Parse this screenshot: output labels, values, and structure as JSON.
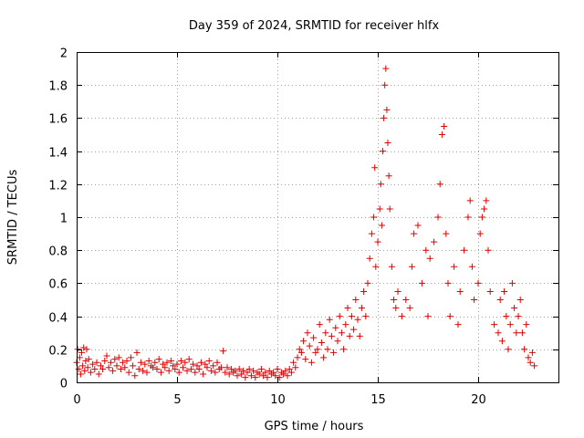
{
  "chart_data": {
    "type": "scatter",
    "title": "Day 359 of 2024, SRMTID for receiver hlfx",
    "xlabel": "GPS time / hours",
    "ylabel": "SRMTID / TECUs",
    "xlim": [
      0,
      24
    ],
    "ylim": [
      0,
      2
    ],
    "xticks": [
      0,
      5,
      10,
      15,
      20
    ],
    "yticks": [
      0,
      0.2,
      0.4,
      0.6,
      0.8,
      1,
      1.2,
      1.4,
      1.6,
      1.8,
      2
    ],
    "xtick_labels": [
      "0",
      "5",
      "10",
      "15",
      "20"
    ],
    "ytick_labels": [
      "0",
      "0.2",
      "0.4",
      "0.6",
      "0.8",
      "1",
      "1.2",
      "1.4",
      "1.6",
      "1.8",
      "2"
    ],
    "grid": true,
    "marker": "+",
    "color": "#e00000",
    "series": [
      {
        "name": "SRMTID",
        "points": [
          [
            0.0,
            0.12
          ],
          [
            0.05,
            0.2
          ],
          [
            0.1,
            0.08
          ],
          [
            0.15,
            0.15
          ],
          [
            0.2,
            0.05
          ],
          [
            0.25,
            0.18
          ],
          [
            0.3,
            0.1
          ],
          [
            0.35,
            0.21
          ],
          [
            0.4,
            0.07
          ],
          [
            0.45,
            0.13
          ],
          [
            0.5,
            0.2
          ],
          [
            0.55,
            0.09
          ],
          [
            0.6,
            0.14
          ],
          [
            0.7,
            0.06
          ],
          [
            0.8,
            0.11
          ],
          [
            0.9,
            0.08
          ],
          [
            1.0,
            0.12
          ],
          [
            1.1,
            0.05
          ],
          [
            1.2,
            0.1
          ],
          [
            1.3,
            0.08
          ],
          [
            1.4,
            0.13
          ],
          [
            1.5,
            0.16
          ],
          [
            1.6,
            0.09
          ],
          [
            1.7,
            0.12
          ],
          [
            1.8,
            0.07
          ],
          [
            1.9,
            0.14
          ],
          [
            2.0,
            0.1
          ],
          [
            2.1,
            0.15
          ],
          [
            2.2,
            0.08
          ],
          [
            2.3,
            0.12
          ],
          [
            2.4,
            0.09
          ],
          [
            2.5,
            0.13
          ],
          [
            2.6,
            0.06
          ],
          [
            2.7,
            0.15
          ],
          [
            2.8,
            0.1
          ],
          [
            2.9,
            0.04
          ],
          [
            3.0,
            0.18
          ],
          [
            3.1,
            0.08
          ],
          [
            3.2,
            0.12
          ],
          [
            3.3,
            0.07
          ],
          [
            3.4,
            0.11
          ],
          [
            3.5,
            0.06
          ],
          [
            3.6,
            0.13
          ],
          [
            3.7,
            0.1
          ],
          [
            3.8,
            0.09
          ],
          [
            3.9,
            0.12
          ],
          [
            4.0,
            0.08
          ],
          [
            4.1,
            0.14
          ],
          [
            4.2,
            0.06
          ],
          [
            4.3,
            0.11
          ],
          [
            4.4,
            0.09
          ],
          [
            4.5,
            0.12
          ],
          [
            4.6,
            0.07
          ],
          [
            4.7,
            0.13
          ],
          [
            4.8,
            0.1
          ],
          [
            4.9,
            0.08
          ],
          [
            5.0,
            0.11
          ],
          [
            5.1,
            0.06
          ],
          [
            5.2,
            0.13
          ],
          [
            5.3,
            0.09
          ],
          [
            5.4,
            0.12
          ],
          [
            5.5,
            0.07
          ],
          [
            5.6,
            0.14
          ],
          [
            5.7,
            0.08
          ],
          [
            5.8,
            0.11
          ],
          [
            5.9,
            0.06
          ],
          [
            6.0,
            0.1
          ],
          [
            6.1,
            0.08
          ],
          [
            6.2,
            0.12
          ],
          [
            6.3,
            0.05
          ],
          [
            6.4,
            0.11
          ],
          [
            6.5,
            0.09
          ],
          [
            6.6,
            0.13
          ],
          [
            6.7,
            0.07
          ],
          [
            6.8,
            0.1
          ],
          [
            6.9,
            0.06
          ],
          [
            7.0,
            0.12
          ],
          [
            7.1,
            0.08
          ],
          [
            7.2,
            0.09
          ],
          [
            7.3,
            0.19
          ],
          [
            7.4,
            0.06
          ],
          [
            7.5,
            0.09
          ],
          [
            7.6,
            0.05
          ],
          [
            7.7,
            0.08
          ],
          [
            7.8,
            0.06
          ],
          [
            7.9,
            0.07
          ],
          [
            8.0,
            0.04
          ],
          [
            8.1,
            0.08
          ],
          [
            8.2,
            0.05
          ],
          [
            8.3,
            0.07
          ],
          [
            8.4,
            0.03
          ],
          [
            8.5,
            0.06
          ],
          [
            8.6,
            0.08
          ],
          [
            8.7,
            0.04
          ],
          [
            8.8,
            0.07
          ],
          [
            8.9,
            0.03
          ],
          [
            9.0,
            0.06
          ],
          [
            9.1,
            0.05
          ],
          [
            9.2,
            0.08
          ],
          [
            9.3,
            0.04
          ],
          [
            9.4,
            0.06
          ],
          [
            9.5,
            0.03
          ],
          [
            9.6,
            0.07
          ],
          [
            9.7,
            0.05
          ],
          [
            9.8,
            0.06
          ],
          [
            9.9,
            0.04
          ],
          [
            10.0,
            0.08
          ],
          [
            10.1,
            0.03
          ],
          [
            10.2,
            0.06
          ],
          [
            10.3,
            0.05
          ],
          [
            10.4,
            0.07
          ],
          [
            10.5,
            0.04
          ],
          [
            10.6,
            0.08
          ],
          [
            10.7,
            0.06
          ],
          [
            10.8,
            0.12
          ],
          [
            10.9,
            0.09
          ],
          [
            11.0,
            0.15
          ],
          [
            11.1,
            0.2
          ],
          [
            11.2,
            0.18
          ],
          [
            11.3,
            0.25
          ],
          [
            11.4,
            0.14
          ],
          [
            11.5,
            0.3
          ],
          [
            11.6,
            0.22
          ],
          [
            11.7,
            0.12
          ],
          [
            11.8,
            0.27
          ],
          [
            11.9,
            0.18
          ],
          [
            12.0,
            0.2
          ],
          [
            12.1,
            0.35
          ],
          [
            12.2,
            0.24
          ],
          [
            12.3,
            0.15
          ],
          [
            12.4,
            0.3
          ],
          [
            12.5,
            0.2
          ],
          [
            12.6,
            0.38
          ],
          [
            12.7,
            0.28
          ],
          [
            12.8,
            0.18
          ],
          [
            12.9,
            0.33
          ],
          [
            13.0,
            0.25
          ],
          [
            13.1,
            0.4
          ],
          [
            13.2,
            0.3
          ],
          [
            13.3,
            0.2
          ],
          [
            13.4,
            0.35
          ],
          [
            13.5,
            0.45
          ],
          [
            13.6,
            0.28
          ],
          [
            13.7,
            0.4
          ],
          [
            13.8,
            0.32
          ],
          [
            13.9,
            0.5
          ],
          [
            14.0,
            0.38
          ],
          [
            14.1,
            0.28
          ],
          [
            14.2,
            0.45
          ],
          [
            14.3,
            0.55
          ],
          [
            14.4,
            0.4
          ],
          [
            14.5,
            0.6
          ],
          [
            14.6,
            0.75
          ],
          [
            14.7,
            0.9
          ],
          [
            14.8,
            1.0
          ],
          [
            14.85,
            1.3
          ],
          [
            14.9,
            0.7
          ],
          [
            15.0,
            0.85
          ],
          [
            15.1,
            1.05
          ],
          [
            15.15,
            1.2
          ],
          [
            15.2,
            0.95
          ],
          [
            15.25,
            1.4
          ],
          [
            15.3,
            1.6
          ],
          [
            15.35,
            1.8
          ],
          [
            15.4,
            1.9
          ],
          [
            15.45,
            1.65
          ],
          [
            15.5,
            1.45
          ],
          [
            15.55,
            1.25
          ],
          [
            15.6,
            1.05
          ],
          [
            15.7,
            0.7
          ],
          [
            15.8,
            0.5
          ],
          [
            15.9,
            0.45
          ],
          [
            16.0,
            0.55
          ],
          [
            16.2,
            0.4
          ],
          [
            16.4,
            0.5
          ],
          [
            16.6,
            0.45
          ],
          [
            16.7,
            0.7
          ],
          [
            16.8,
            0.9
          ],
          [
            17.0,
            0.95
          ],
          [
            17.2,
            0.6
          ],
          [
            17.4,
            0.8
          ],
          [
            17.5,
            0.4
          ],
          [
            17.6,
            0.75
          ],
          [
            17.8,
            0.85
          ],
          [
            18.0,
            1.0
          ],
          [
            18.1,
            1.2
          ],
          [
            18.2,
            1.5
          ],
          [
            18.3,
            1.55
          ],
          [
            18.4,
            0.9
          ],
          [
            18.5,
            0.6
          ],
          [
            18.6,
            0.4
          ],
          [
            18.8,
            0.7
          ],
          [
            19.0,
            0.35
          ],
          [
            19.1,
            0.55
          ],
          [
            19.3,
            0.8
          ],
          [
            19.5,
            1.0
          ],
          [
            19.6,
            1.1
          ],
          [
            19.7,
            0.7
          ],
          [
            19.8,
            0.5
          ],
          [
            20.0,
            0.6
          ],
          [
            20.1,
            0.9
          ],
          [
            20.2,
            1.0
          ],
          [
            20.3,
            1.05
          ],
          [
            20.4,
            1.1
          ],
          [
            20.5,
            0.8
          ],
          [
            20.6,
            0.55
          ],
          [
            20.8,
            0.35
          ],
          [
            21.0,
            0.3
          ],
          [
            21.1,
            0.5
          ],
          [
            21.2,
            0.25
          ],
          [
            21.3,
            0.55
          ],
          [
            21.4,
            0.4
          ],
          [
            21.5,
            0.2
          ],
          [
            21.6,
            0.35
          ],
          [
            21.7,
            0.6
          ],
          [
            21.8,
            0.45
          ],
          [
            21.9,
            0.3
          ],
          [
            22.0,
            0.4
          ],
          [
            22.1,
            0.5
          ],
          [
            22.2,
            0.3
          ],
          [
            22.3,
            0.2
          ],
          [
            22.4,
            0.35
          ],
          [
            22.5,
            0.15
          ],
          [
            22.6,
            0.12
          ],
          [
            22.7,
            0.18
          ],
          [
            22.8,
            0.1
          ]
        ]
      }
    ]
  }
}
